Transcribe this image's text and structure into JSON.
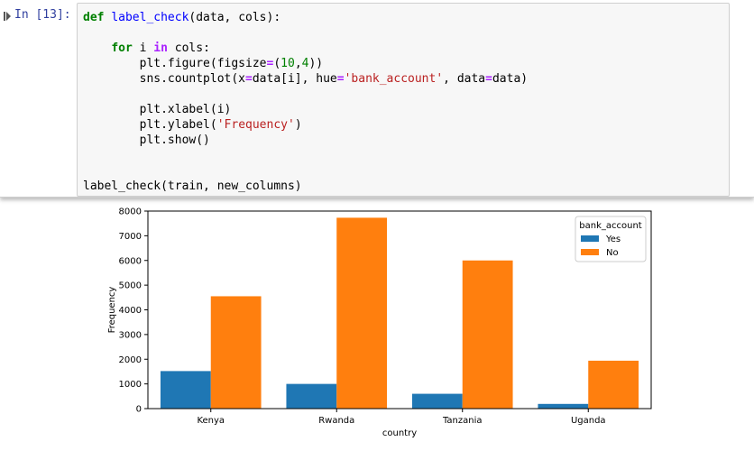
{
  "cell": {
    "prompt": "In [13]:",
    "code_lines": [
      [
        {
          "t": "def",
          "c": "kw"
        },
        {
          "t": " "
        },
        {
          "t": "label_check",
          "c": "fn"
        },
        {
          "t": "(data, cols):"
        }
      ],
      [],
      [
        {
          "t": "    "
        },
        {
          "t": "for",
          "c": "kw"
        },
        {
          "t": " i "
        },
        {
          "t": "in",
          "c": "op"
        },
        {
          "t": " cols:"
        }
      ],
      [
        {
          "t": "        plt.figure(figsize"
        },
        {
          "t": "=",
          "c": "op"
        },
        {
          "t": "("
        },
        {
          "t": "10",
          "c": "num"
        },
        {
          "t": ","
        },
        {
          "t": "4",
          "c": "num"
        },
        {
          "t": "))"
        }
      ],
      [
        {
          "t": "        sns.countplot(x"
        },
        {
          "t": "=",
          "c": "op"
        },
        {
          "t": "data[i], hue"
        },
        {
          "t": "=",
          "c": "op"
        },
        {
          "t": "'bank_account'",
          "c": "str"
        },
        {
          "t": ", data"
        },
        {
          "t": "=",
          "c": "op"
        },
        {
          "t": "data)"
        }
      ],
      [],
      [
        {
          "t": "        plt.xlabel(i)"
        }
      ],
      [
        {
          "t": "        plt.ylabel("
        },
        {
          "t": "'Frequency'",
          "c": "str"
        },
        {
          "t": ")"
        }
      ],
      [
        {
          "t": "        plt.show()"
        }
      ],
      [],
      [],
      [
        {
          "t": "label_check(train, new_columns)"
        }
      ]
    ]
  },
  "chart_data": {
    "type": "bar",
    "categories": [
      "Kenya",
      "Rwanda",
      "Tanzania",
      "Uganda"
    ],
    "series": [
      {
        "name": "Yes",
        "color": "#1f77b4",
        "values": [
          1520,
          1000,
          600,
          190
        ]
      },
      {
        "name": "No",
        "color": "#ff7f0e",
        "values": [
          4550,
          7730,
          6000,
          1940
        ]
      }
    ],
    "xlabel": "country",
    "ylabel": "Frequency",
    "ylim": [
      0,
      8000
    ],
    "yticks": [
      "0",
      "1000",
      "2000",
      "3000",
      "4000",
      "5000",
      "6000",
      "7000",
      "8000"
    ],
    "legend": {
      "title": "bank_account",
      "placement": "top-right"
    },
    "grid": false
  }
}
